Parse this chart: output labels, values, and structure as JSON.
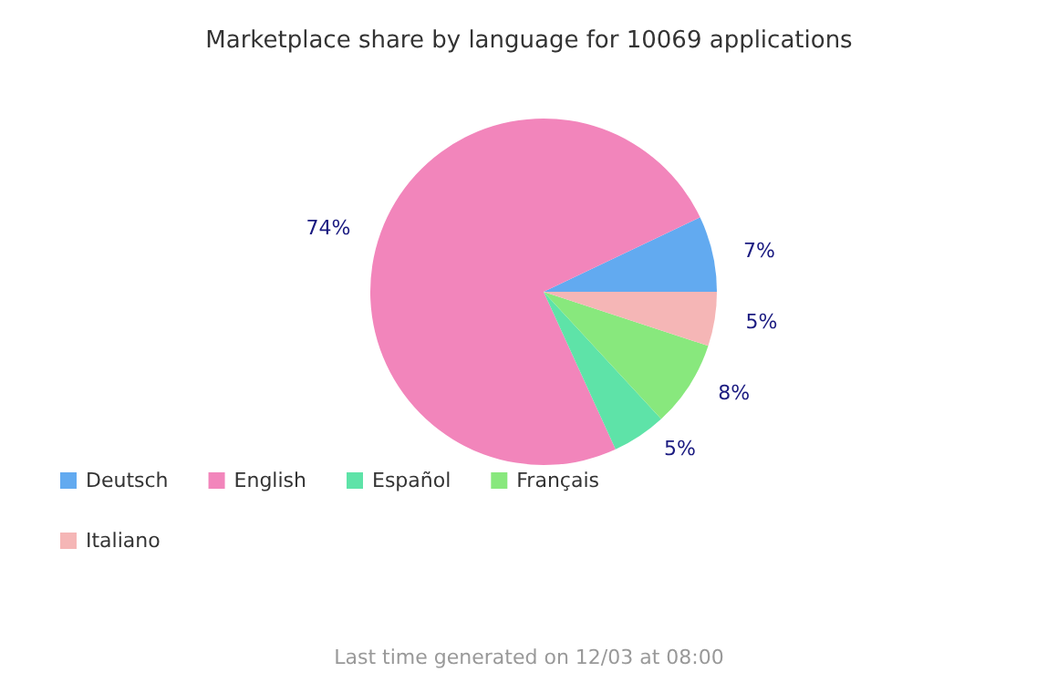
{
  "chart_data": {
    "type": "pie",
    "title": "Marketplace share by language for 10069 applications",
    "categories": [
      "Deutsch",
      "English",
      "Español",
      "Français",
      "Italiano"
    ],
    "values": [
      7,
      74,
      5,
      8,
      5
    ],
    "colors": [
      "#62aaf0",
      "#f285bb",
      "#5ee3a8",
      "#88e87d",
      "#f5b6b6"
    ],
    "value_labels": [
      "7%",
      "74%",
      "5%",
      "8%",
      "5%"
    ],
    "legend": "bottom left",
    "annotations": [
      "Last time generated on 12/03 at 08:00"
    ]
  }
}
